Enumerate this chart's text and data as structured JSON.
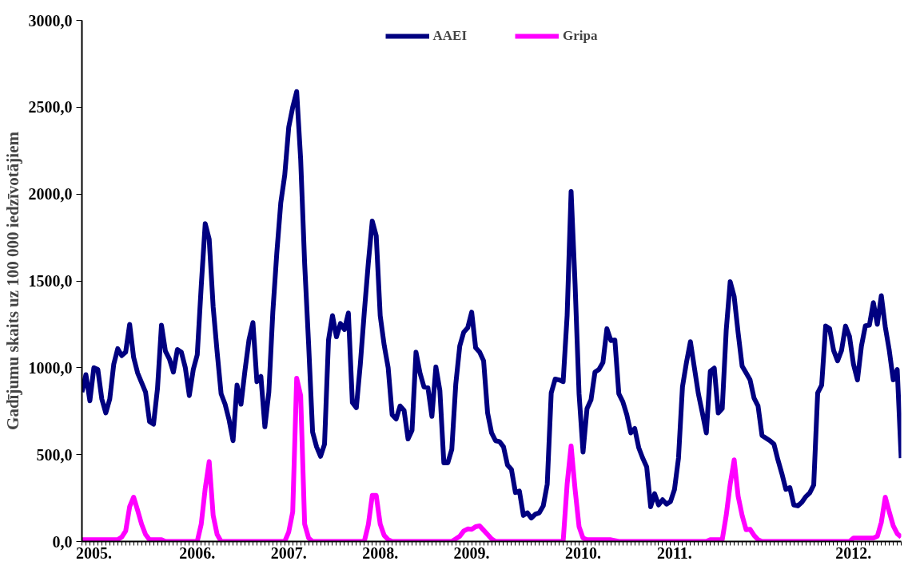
{
  "chart_data": {
    "type": "line",
    "ylabel": "Gadījumu skaits uz 100 000 iedzīvotājiem",
    "categories": [
      null,
      null,
      null,
      "2005.",
      null,
      null,
      null,
      null,
      null,
      null,
      null,
      null,
      null,
      null,
      null,
      null,
      null,
      null,
      null,
      null,
      null,
      null,
      null,
      null,
      null,
      null,
      null,
      null,
      null,
      "2006.",
      null,
      null,
      null,
      null,
      null,
      null,
      null,
      null,
      null,
      null,
      null,
      null,
      null,
      null,
      null,
      null,
      null,
      null,
      null,
      null,
      null,
      null,
      "2007.",
      null,
      null,
      null,
      null,
      null,
      null,
      null,
      null,
      null,
      null,
      null,
      null,
      null,
      null,
      null,
      null,
      null,
      null,
      null,
      null,
      null,
      null,
      "2008.",
      null,
      null,
      null,
      null,
      null,
      null,
      null,
      null,
      null,
      null,
      null,
      null,
      null,
      null,
      null,
      null,
      null,
      null,
      null,
      null,
      null,
      null,
      "2009.",
      null,
      null,
      null,
      null,
      null,
      null,
      null,
      null,
      null,
      null,
      null,
      null,
      null,
      null,
      null,
      null,
      null,
      null,
      null,
      null,
      null,
      null,
      null,
      null,
      null,
      null,
      null,
      "2010.",
      null,
      null,
      null,
      null,
      null,
      null,
      null,
      null,
      null,
      null,
      null,
      null,
      null,
      null,
      null,
      null,
      null,
      null,
      null,
      null,
      null,
      null,
      "2011.",
      null,
      null,
      null,
      null,
      null,
      null,
      null,
      null,
      null,
      null,
      null,
      null,
      null,
      null,
      null,
      null,
      null,
      null,
      null,
      null,
      null,
      null,
      null,
      null,
      null,
      null,
      null,
      null,
      null,
      null,
      null,
      null,
      null,
      null,
      null,
      null,
      null,
      null,
      null,
      null,
      null,
      null,
      null,
      null,
      "2012.",
      null,
      null,
      null,
      null,
      null,
      null,
      null,
      null,
      null,
      null,
      null,
      null
    ],
    "ylim": [
      0,
      3000
    ],
    "yticks": [
      {
        "value": 0,
        "label": "0,0"
      },
      {
        "value": 500,
        "label": "500,0"
      },
      {
        "value": 1000,
        "label": "1000,0"
      },
      {
        "value": 1500,
        "label": "1500,0"
      },
      {
        "value": 2000,
        "label": "2000,0"
      },
      {
        "value": 2500,
        "label": "2500,0"
      },
      {
        "value": 3000,
        "label": "3000,0"
      }
    ],
    "grid": false,
    "legend": "top",
    "line_style": "solid",
    "series": [
      {
        "name": "AAEI",
        "color": "#000080",
        "values": [
          860,
          960,
          810,
          1000,
          990,
          820,
          740,
          820,
          1020,
          1110,
          1070,
          1090,
          1250,
          1060,
          970,
          915,
          860,
          690,
          675,
          880,
          1245,
          1095,
          1050,
          975,
          1105,
          1090,
          1000,
          840,
          990,
          1075,
          1470,
          1830,
          1740,
          1350,
          1090,
          850,
          790,
          700,
          580,
          900,
          790,
          985,
          1160,
          1260,
          920,
          950,
          660,
          860,
          1320,
          1660,
          1950,
          2110,
          2385,
          2500,
          2590,
          2200,
          1600,
          1135,
          630,
          545,
          490,
          560,
          1160,
          1300,
          1178,
          1255,
          1220,
          1315,
          800,
          770,
          1020,
          1320,
          1600,
          1845,
          1760,
          1300,
          1130,
          1000,
          730,
          705,
          780,
          755,
          590,
          640,
          1090,
          970,
          890,
          885,
          720,
          1005,
          870,
          453,
          453,
          530,
          905,
          1125,
          1205,
          1230,
          1320,
          1115,
          1090,
          1040,
          740,
          625,
          580,
          575,
          545,
          440,
          415,
          282,
          290,
          150,
          165,
          135,
          157,
          165,
          205,
          330,
          855,
          935,
          930,
          920,
          1300,
          2015,
          1480,
          850,
          515,
          765,
          815,
          975,
          990,
          1030,
          1225,
          1157,
          1160,
          850,
          805,
          730,
          625,
          650,
          540,
          480,
          430,
          200,
          275,
          210,
          240,
          215,
          230,
          300,
          480,
          890,
          1030,
          1150,
          1000,
          850,
          740,
          625,
          980,
          998,
          740,
          765,
          1215,
          1495,
          1410,
          1200,
          1010,
          970,
          930,
          825,
          780,
          610,
          595,
          580,
          560,
          470,
          390,
          300,
          310,
          210,
          205,
          225,
          258,
          280,
          325,
          855,
          900,
          1240,
          1225,
          1100,
          1040,
          1100,
          1240,
          1180,
          1020,
          930,
          1125,
          1242,
          1245,
          1375,
          1250,
          1415,
          1235,
          1100,
          930,
          990,
          480
        ]
      },
      {
        "name": "Gripa",
        "color": "#ff00ff",
        "values": [
          10,
          10,
          10,
          10,
          10,
          10,
          10,
          10,
          10,
          10,
          25,
          60,
          200,
          255,
          180,
          100,
          40,
          10,
          10,
          10,
          10,
          0,
          0,
          0,
          0,
          0,
          0,
          0,
          0,
          0,
          100,
          305,
          460,
          150,
          40,
          0,
          0,
          0,
          0,
          0,
          0,
          0,
          0,
          0,
          0,
          0,
          0,
          0,
          0,
          0,
          0,
          0,
          55,
          170,
          940,
          840,
          100,
          20,
          0,
          0,
          0,
          0,
          0,
          0,
          0,
          0,
          0,
          0,
          0,
          0,
          0,
          0,
          95,
          265,
          265,
          100,
          35,
          10,
          0,
          0,
          0,
          0,
          0,
          0,
          0,
          0,
          0,
          0,
          0,
          0,
          0,
          0,
          0,
          0,
          15,
          30,
          60,
          72,
          70,
          85,
          90,
          65,
          40,
          15,
          0,
          0,
          0,
          0,
          0,
          0,
          0,
          0,
          0,
          0,
          0,
          0,
          0,
          0,
          0,
          0,
          0,
          0,
          330,
          550,
          300,
          85,
          20,
          10,
          10,
          10,
          10,
          10,
          10,
          10,
          5,
          0,
          0,
          0,
          0,
          0,
          0,
          0,
          0,
          0,
          0,
          0,
          0,
          0,
          0,
          0,
          0,
          0,
          0,
          0,
          0,
          0,
          0,
          0,
          10,
          10,
          10,
          10,
          150,
          330,
          470,
          260,
          150,
          68,
          70,
          35,
          10,
          0,
          0,
          0,
          0,
          0,
          0,
          0,
          0,
          0,
          0,
          0,
          0,
          0,
          0,
          0,
          0,
          0,
          0,
          0,
          0,
          0,
          0,
          0,
          20,
          20,
          20,
          20,
          20,
          20,
          30,
          110,
          255,
          170,
          90,
          45,
          25
        ]
      }
    ]
  }
}
